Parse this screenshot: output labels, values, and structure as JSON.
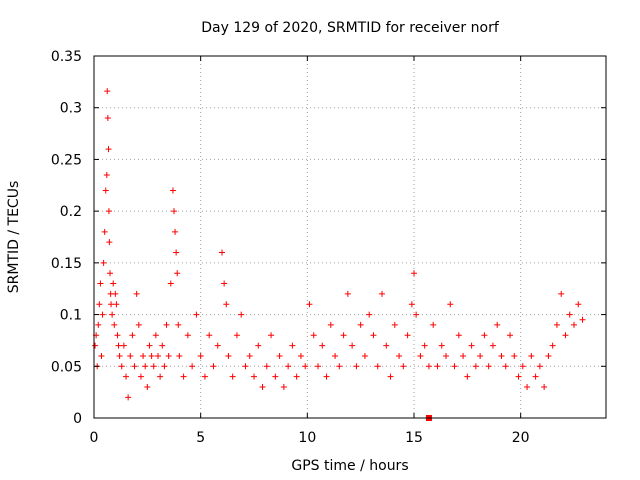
{
  "chart_data": {
    "type": "scatter",
    "title": "Day 129 of 2020, SRMTID for receiver norf",
    "xlabel": "GPS time / hours",
    "ylabel": "SRMTID / TECUs",
    "xlim": [
      0,
      24
    ],
    "ylim": [
      0,
      0.35
    ],
    "xticks": [
      0,
      5,
      10,
      15,
      20
    ],
    "xtick_labels": [
      "0",
      "5",
      "10",
      "15",
      "20"
    ],
    "yticks": [
      0,
      0.05,
      0.1,
      0.15,
      0.2,
      0.25,
      0.3,
      0.35
    ],
    "ytick_labels": [
      "0",
      "0.05",
      "0.1",
      "0.15",
      "0.2",
      "0.25",
      "0.3",
      "0.35"
    ],
    "grid": true,
    "marker": "+",
    "color": "#ff0000",
    "series": [
      {
        "name": "SRMTID",
        "x": [
          0.05,
          0.1,
          0.15,
          0.2,
          0.25,
          0.3,
          0.35,
          0.4,
          0.45,
          0.5,
          0.55,
          0.6,
          0.62,
          0.65,
          0.68,
          0.7,
          0.72,
          0.75,
          0.78,
          0.8,
          0.85,
          0.9,
          0.95,
          1.0,
          1.05,
          1.1,
          1.15,
          1.2,
          1.3,
          1.4,
          1.5,
          1.6,
          1.7,
          1.8,
          1.9,
          2.0,
          2.1,
          2.2,
          2.3,
          2.4,
          2.5,
          2.6,
          2.7,
          2.8,
          2.9,
          3.0,
          3.1,
          3.2,
          3.3,
          3.4,
          3.5,
          3.6,
          3.7,
          3.75,
          3.8,
          3.85,
          3.9,
          3.95,
          4.0,
          4.2,
          4.4,
          4.6,
          4.8,
          5.0,
          5.2,
          5.4,
          5.6,
          5.8,
          6.0,
          6.1,
          6.2,
          6.3,
          6.5,
          6.7,
          6.9,
          7.1,
          7.3,
          7.5,
          7.7,
          7.9,
          8.1,
          8.3,
          8.5,
          8.7,
          8.9,
          9.1,
          9.3,
          9.5,
          9.7,
          9.9,
          10.1,
          10.3,
          10.5,
          10.7,
          10.9,
          11.1,
          11.3,
          11.5,
          11.7,
          11.9,
          12.1,
          12.3,
          12.5,
          12.7,
          12.9,
          13.1,
          13.3,
          13.5,
          13.7,
          13.9,
          14.1,
          14.3,
          14.5,
          14.7,
          14.9,
          15.0,
          15.1,
          15.3,
          15.5,
          15.7,
          15.9,
          16.1,
          16.3,
          16.5,
          16.7,
          16.9,
          17.1,
          17.3,
          17.5,
          17.7,
          17.9,
          18.1,
          18.3,
          18.5,
          18.7,
          18.9,
          19.1,
          19.3,
          19.5,
          19.7,
          19.9,
          20.1,
          20.3,
          20.5,
          20.7,
          20.9,
          21.1,
          21.3,
          21.5,
          21.7,
          21.9,
          22.1,
          22.3,
          22.5,
          22.7,
          22.9
        ],
        "y": [
          0.07,
          0.08,
          0.05,
          0.09,
          0.11,
          0.13,
          0.06,
          0.1,
          0.15,
          0.18,
          0.22,
          0.235,
          0.316,
          0.29,
          0.26,
          0.2,
          0.17,
          0.14,
          0.12,
          0.11,
          0.1,
          0.13,
          0.09,
          0.12,
          0.11,
          0.08,
          0.07,
          0.06,
          0.05,
          0.07,
          0.04,
          0.02,
          0.06,
          0.08,
          0.05,
          0.12,
          0.09,
          0.04,
          0.06,
          0.05,
          0.03,
          0.07,
          0.06,
          0.05,
          0.08,
          0.06,
          0.04,
          0.07,
          0.05,
          0.09,
          0.06,
          0.13,
          0.22,
          0.2,
          0.18,
          0.16,
          0.14,
          0.09,
          0.06,
          0.04,
          0.08,
          0.05,
          0.1,
          0.06,
          0.04,
          0.08,
          0.05,
          0.07,
          0.16,
          0.13,
          0.11,
          0.06,
          0.04,
          0.08,
          0.1,
          0.05,
          0.06,
          0.04,
          0.07,
          0.03,
          0.05,
          0.08,
          0.04,
          0.06,
          0.03,
          0.05,
          0.07,
          0.04,
          0.06,
          0.05,
          0.11,
          0.08,
          0.05,
          0.07,
          0.04,
          0.09,
          0.06,
          0.05,
          0.08,
          0.12,
          0.07,
          0.05,
          0.09,
          0.06,
          0.1,
          0.08,
          0.05,
          0.12,
          0.07,
          0.04,
          0.09,
          0.06,
          0.05,
          0.08,
          0.11,
          0.14,
          0.1,
          0.06,
          0.07,
          0.05,
          0.09,
          0.05,
          0.07,
          0.06,
          0.11,
          0.05,
          0.08,
          0.06,
          0.04,
          0.07,
          0.05,
          0.06,
          0.08,
          0.05,
          0.07,
          0.09,
          0.06,
          0.05,
          0.08,
          0.06,
          0.04,
          0.05,
          0.03,
          0.06,
          0.04,
          0.05,
          0.03,
          0.06,
          0.07,
          0.09,
          0.12,
          0.08,
          0.1,
          0.09,
          0.11,
          0.095
        ],
        "highlight_point": {
          "x": 15.7,
          "y": 0
        }
      }
    ]
  }
}
